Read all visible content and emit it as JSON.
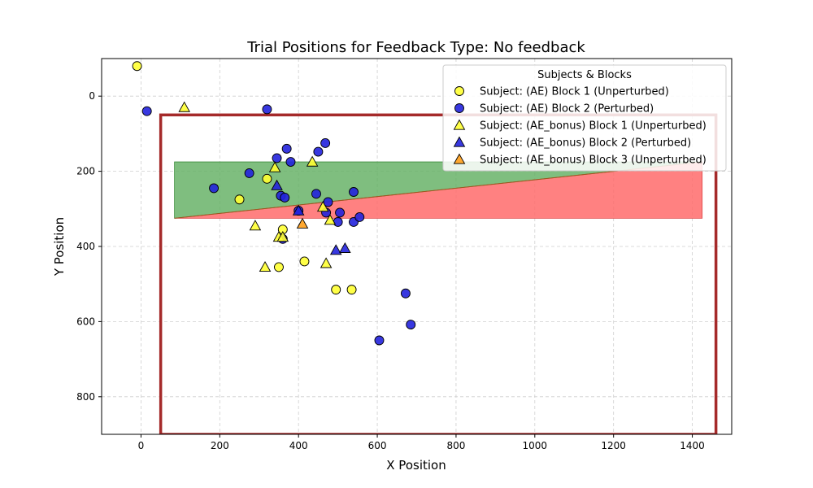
{
  "chart_data": {
    "type": "scatter",
    "title": "Trial Positions for Feedback Type: No feedback",
    "xlabel": "X Position",
    "ylabel": "Y Position",
    "xlim": [
      -100,
      1500
    ],
    "ylim": [
      900,
      -100
    ],
    "y_inverted": true,
    "grid": true,
    "xticks": [
      0,
      200,
      400,
      600,
      800,
      1000,
      1200,
      1400
    ],
    "yticks": [
      0,
      200,
      400,
      600,
      800
    ],
    "legend": {
      "title": "Subjects & Blocks",
      "position": "top-right"
    },
    "regions": {
      "frame": {
        "x": [
          50,
          1460
        ],
        "y": [
          50,
          900
        ],
        "color": "#a52a2a"
      },
      "green_polygon": [
        [
          85,
          175
        ],
        [
          1425,
          175
        ],
        [
          85,
          325
        ]
      ],
      "red_polygon": [
        [
          85,
          325
        ],
        [
          1425,
          175
        ],
        [
          1425,
          325
        ]
      ],
      "green_color": "#5fae5f",
      "red_color": "#ff6b6b"
    },
    "series": [
      {
        "name": "Subject: (AE) Block 1 (Unperturbed)",
        "marker": "circle",
        "color": "#ffff33",
        "points": [
          [
            -10,
            -80
          ],
          [
            250,
            275
          ],
          [
            320,
            220
          ],
          [
            360,
            355
          ],
          [
            350,
            455
          ],
          [
            415,
            440
          ],
          [
            495,
            515
          ],
          [
            535,
            515
          ]
        ]
      },
      {
        "name": "Subject: (AE) Block 2 (Perturbed)",
        "marker": "circle",
        "color": "#2222dd",
        "points": [
          [
            15,
            40
          ],
          [
            320,
            35
          ],
          [
            185,
            245
          ],
          [
            275,
            205
          ],
          [
            345,
            165
          ],
          [
            370,
            140
          ],
          [
            380,
            175
          ],
          [
            355,
            265
          ],
          [
            365,
            270
          ],
          [
            445,
            260
          ],
          [
            450,
            148
          ],
          [
            468,
            125
          ],
          [
            475,
            282
          ],
          [
            470,
            310
          ],
          [
            505,
            310
          ],
          [
            500,
            335
          ],
          [
            540,
            335
          ],
          [
            540,
            255
          ],
          [
            555,
            322
          ],
          [
            400,
            305
          ],
          [
            360,
            380
          ],
          [
            605,
            650
          ],
          [
            672,
            525
          ],
          [
            685,
            608
          ]
        ]
      },
      {
        "name": "Subject: (AE_bonus) Block 1 (Unperturbed)",
        "marker": "triangle",
        "color": "#ffff33",
        "points": [
          [
            110,
            30
          ],
          [
            340,
            190
          ],
          [
            435,
            175
          ],
          [
            290,
            345
          ],
          [
            350,
            375
          ],
          [
            360,
            375
          ],
          [
            315,
            455
          ],
          [
            470,
            445
          ],
          [
            480,
            330
          ],
          [
            462,
            295
          ]
        ]
      },
      {
        "name": "Subject: (AE_bonus) Block 2 (Perturbed)",
        "marker": "triangle",
        "color": "#2222dd",
        "points": [
          [
            345,
            238
          ],
          [
            400,
            305
          ],
          [
            495,
            410
          ],
          [
            518,
            405
          ]
        ]
      },
      {
        "name": "Subject: (AE_bonus) Block 3 (Unperturbed)",
        "marker": "triangle",
        "color": "#ff9f1a",
        "points": [
          [
            410,
            340
          ]
        ]
      }
    ]
  }
}
